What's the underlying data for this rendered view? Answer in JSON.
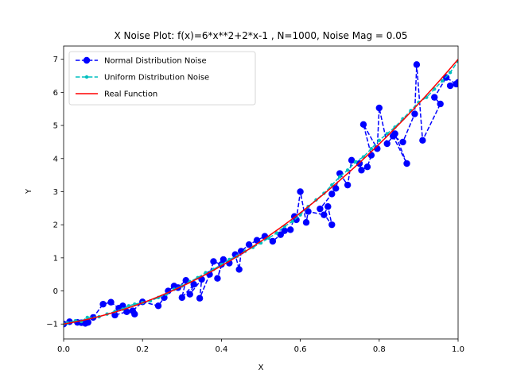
{
  "chart_data": {
    "type": "line",
    "title": "X Noise Plot: f(x)=6*x**2+2*x-1 , N=1000, Noise Mag = 0.05",
    "xlabel": "X",
    "ylabel": "Y",
    "xlim": [
      0.0,
      1.0
    ],
    "ylim": [
      -1.45,
      7.4
    ],
    "xticks": [
      0.0,
      0.2,
      0.4,
      0.6,
      0.8,
      1.0
    ],
    "xtick_labels": [
      "0.0",
      "0.2",
      "0.4",
      "0.6",
      "0.8",
      "1.0"
    ],
    "yticks": [
      -1,
      0,
      1,
      2,
      3,
      4,
      5,
      6,
      7
    ],
    "ytick_labels": [
      "−1",
      "0",
      "1",
      "2",
      "3",
      "4",
      "5",
      "6",
      "7"
    ],
    "legend_position": "upper-left",
    "grid": false,
    "series": [
      {
        "name": "Normal Distribution Noise",
        "color": "#0000ff",
        "line_style": "dashed",
        "marker": "circle-large",
        "x": [
          0.0,
          0.015,
          0.035,
          0.055,
          0.062,
          0.045,
          0.075,
          0.1,
          0.12,
          0.14,
          0.13,
          0.16,
          0.15,
          0.18,
          0.175,
          0.2,
          0.24,
          0.255,
          0.265,
          0.28,
          0.29,
          0.31,
          0.3,
          0.33,
          0.32,
          0.35,
          0.345,
          0.37,
          0.38,
          0.4,
          0.39,
          0.405,
          0.42,
          0.435,
          0.445,
          0.45,
          0.47,
          0.49,
          0.51,
          0.53,
          0.55,
          0.56,
          0.575,
          0.585,
          0.59,
          0.6,
          0.615,
          0.62,
          0.66,
          0.67,
          0.68,
          0.65,
          0.68,
          0.69,
          0.7,
          0.72,
          0.73,
          0.75,
          0.755,
          0.77,
          0.78,
          0.76,
          0.795,
          0.8,
          0.82,
          0.84,
          0.87,
          0.835,
          0.86,
          0.89,
          0.895,
          0.91,
          0.955,
          0.94,
          0.97,
          0.995,
          0.98,
          1.0
        ],
        "y": [
          -1.0,
          -0.93,
          -0.95,
          -0.98,
          -0.95,
          -0.96,
          -0.8,
          -0.4,
          -0.34,
          -0.52,
          -0.73,
          -0.63,
          -0.45,
          -0.7,
          -0.6,
          -0.33,
          -0.45,
          -0.2,
          0.0,
          0.15,
          0.1,
          0.32,
          -0.2,
          0.2,
          -0.1,
          0.35,
          -0.22,
          0.5,
          0.89,
          0.8,
          0.38,
          0.95,
          0.84,
          1.1,
          0.65,
          1.2,
          1.4,
          1.53,
          1.65,
          1.5,
          1.7,
          1.82,
          1.85,
          2.25,
          2.15,
          3.0,
          2.07,
          2.4,
          2.3,
          2.55,
          2.0,
          2.48,
          2.93,
          3.1,
          3.55,
          3.2,
          3.95,
          3.85,
          3.65,
          3.75,
          4.1,
          5.03,
          4.3,
          5.53,
          4.45,
          4.75,
          3.85,
          4.68,
          4.5,
          5.35,
          6.84,
          4.55,
          5.65,
          5.85,
          6.45,
          6.25,
          6.2,
          6.3
        ]
      },
      {
        "name": "Uniform Distribution Noise",
        "color": "#00bfbf",
        "line_style": "dashed",
        "marker": "circle-small",
        "x": [
          0.0,
          0.01,
          0.03,
          0.045,
          0.06,
          0.09,
          0.11,
          0.13,
          0.15,
          0.165,
          0.18,
          0.2,
          0.22,
          0.24,
          0.26,
          0.28,
          0.3,
          0.32,
          0.34,
          0.36,
          0.38,
          0.4,
          0.42,
          0.44,
          0.46,
          0.48,
          0.5,
          0.52,
          0.54,
          0.56,
          0.58,
          0.6,
          0.62,
          0.64,
          0.66,
          0.68,
          0.7,
          0.72,
          0.74,
          0.76,
          0.78,
          0.8,
          0.82,
          0.84,
          0.86,
          0.88,
          0.9,
          0.92,
          0.94,
          0.96,
          0.98,
          1.0
        ],
        "y": [
          -1.0,
          -0.97,
          -0.9,
          -0.92,
          -0.8,
          -0.78,
          -0.7,
          -0.62,
          -0.55,
          -0.45,
          -0.4,
          -0.35,
          -0.3,
          -0.2,
          -0.1,
          0.05,
          0.15,
          0.28,
          0.4,
          0.55,
          0.65,
          0.8,
          0.95,
          1.05,
          1.2,
          1.32,
          1.45,
          1.6,
          1.75,
          1.95,
          2.1,
          2.3,
          2.55,
          2.75,
          2.95,
          3.2,
          3.45,
          3.65,
          3.9,
          4.05,
          4.3,
          4.55,
          4.75,
          4.95,
          5.2,
          5.45,
          5.7,
          5.85,
          6.1,
          6.35,
          6.6,
          6.95
        ]
      },
      {
        "name": "Real Function",
        "color": "#ff0000",
        "line_style": "solid",
        "marker": "none",
        "function": "6*x**2+2*x-1"
      }
    ]
  }
}
